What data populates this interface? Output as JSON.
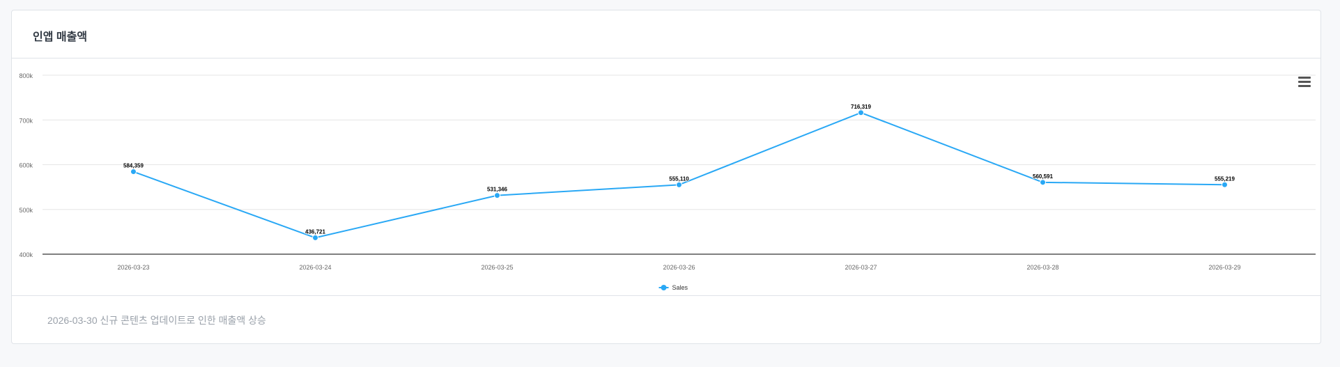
{
  "card": {
    "title": "인앱 매출액",
    "footer_note": "2026-03-30 신규 콘텐츠 업데이트로 인한 매출액 상승"
  },
  "toolbar": {
    "menu_icon": "hamburger-menu-icon"
  },
  "colors": {
    "series": "#29a8f5",
    "grid": "#e6e6e6",
    "axis": "#333333"
  },
  "chart_data": {
    "type": "line",
    "x": [
      "2026-03-23",
      "2026-03-24",
      "2026-03-25",
      "2026-03-26",
      "2026-03-27",
      "2026-03-28",
      "2026-03-29"
    ],
    "series": [
      {
        "name": "Sales",
        "values": [
          584359,
          436721,
          531346,
          555110,
          716319,
          560591,
          555219
        ],
        "labels": [
          "584,359",
          "436,721",
          "531,346",
          "555,110",
          "716,319",
          "560,591",
          "555,219"
        ]
      }
    ],
    "ylim": [
      400000,
      800000
    ],
    "yticks": [
      "400k",
      "500k",
      "600k",
      "700k",
      "800k"
    ],
    "ytick_values": [
      400000,
      500000,
      600000,
      700000,
      800000
    ],
    "grid": true,
    "legend_position": "bottom-center",
    "data_labels": true
  }
}
